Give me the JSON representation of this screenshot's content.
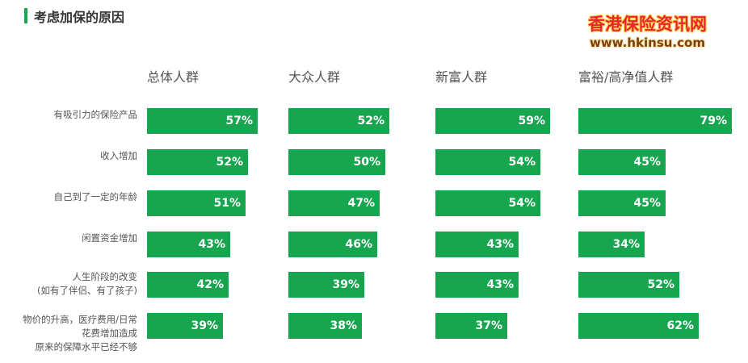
{
  "title": "考虑加保的原因",
  "watermark": {
    "name": "香港保险资讯网",
    "url": "www.hkinsu.com"
  },
  "chart_data": {
    "type": "bar",
    "orientation": "horizontal",
    "unit": "%",
    "categories": [
      [
        "有吸引力的保险产品"
      ],
      [
        "收入增加"
      ],
      [
        "自己到了一定的年龄"
      ],
      [
        "闲置资金增加"
      ],
      [
        "人生阶段的改变",
        "(如有了伴侣、有了孩子)"
      ],
      [
        "物价的升高，医疗费用/日常",
        "花费增加造成",
        "原来的保障水平已经不够"
      ]
    ],
    "series": [
      {
        "name": "总体人群",
        "values": [
          57,
          52,
          51,
          43,
          42,
          39
        ],
        "labels": [
          "57%",
          "52%",
          "51%",
          "43%",
          "42%",
          "39%"
        ]
      },
      {
        "name": "大众人群",
        "values": [
          52,
          50,
          47,
          46,
          39,
          38
        ],
        "labels": [
          "52%",
          "50%",
          "47%",
          "46%",
          "39%",
          "38%"
        ]
      },
      {
        "name": "新富人群",
        "values": [
          59,
          54,
          54,
          43,
          43,
          37
        ],
        "labels": [
          "59%",
          "54%",
          "54%",
          "43%",
          "43%",
          "37%"
        ]
      },
      {
        "name": "富裕/高净值人群",
        "values": [
          79,
          45,
          45,
          34,
          52,
          62
        ],
        "labels": [
          "79%",
          "45%",
          "45%",
          "34%",
          "52%",
          "62%"
        ]
      }
    ],
    "colors": {
      "bar": "#17a54f",
      "bar_text": "#ffffff",
      "accent": "#1aa552"
    }
  }
}
